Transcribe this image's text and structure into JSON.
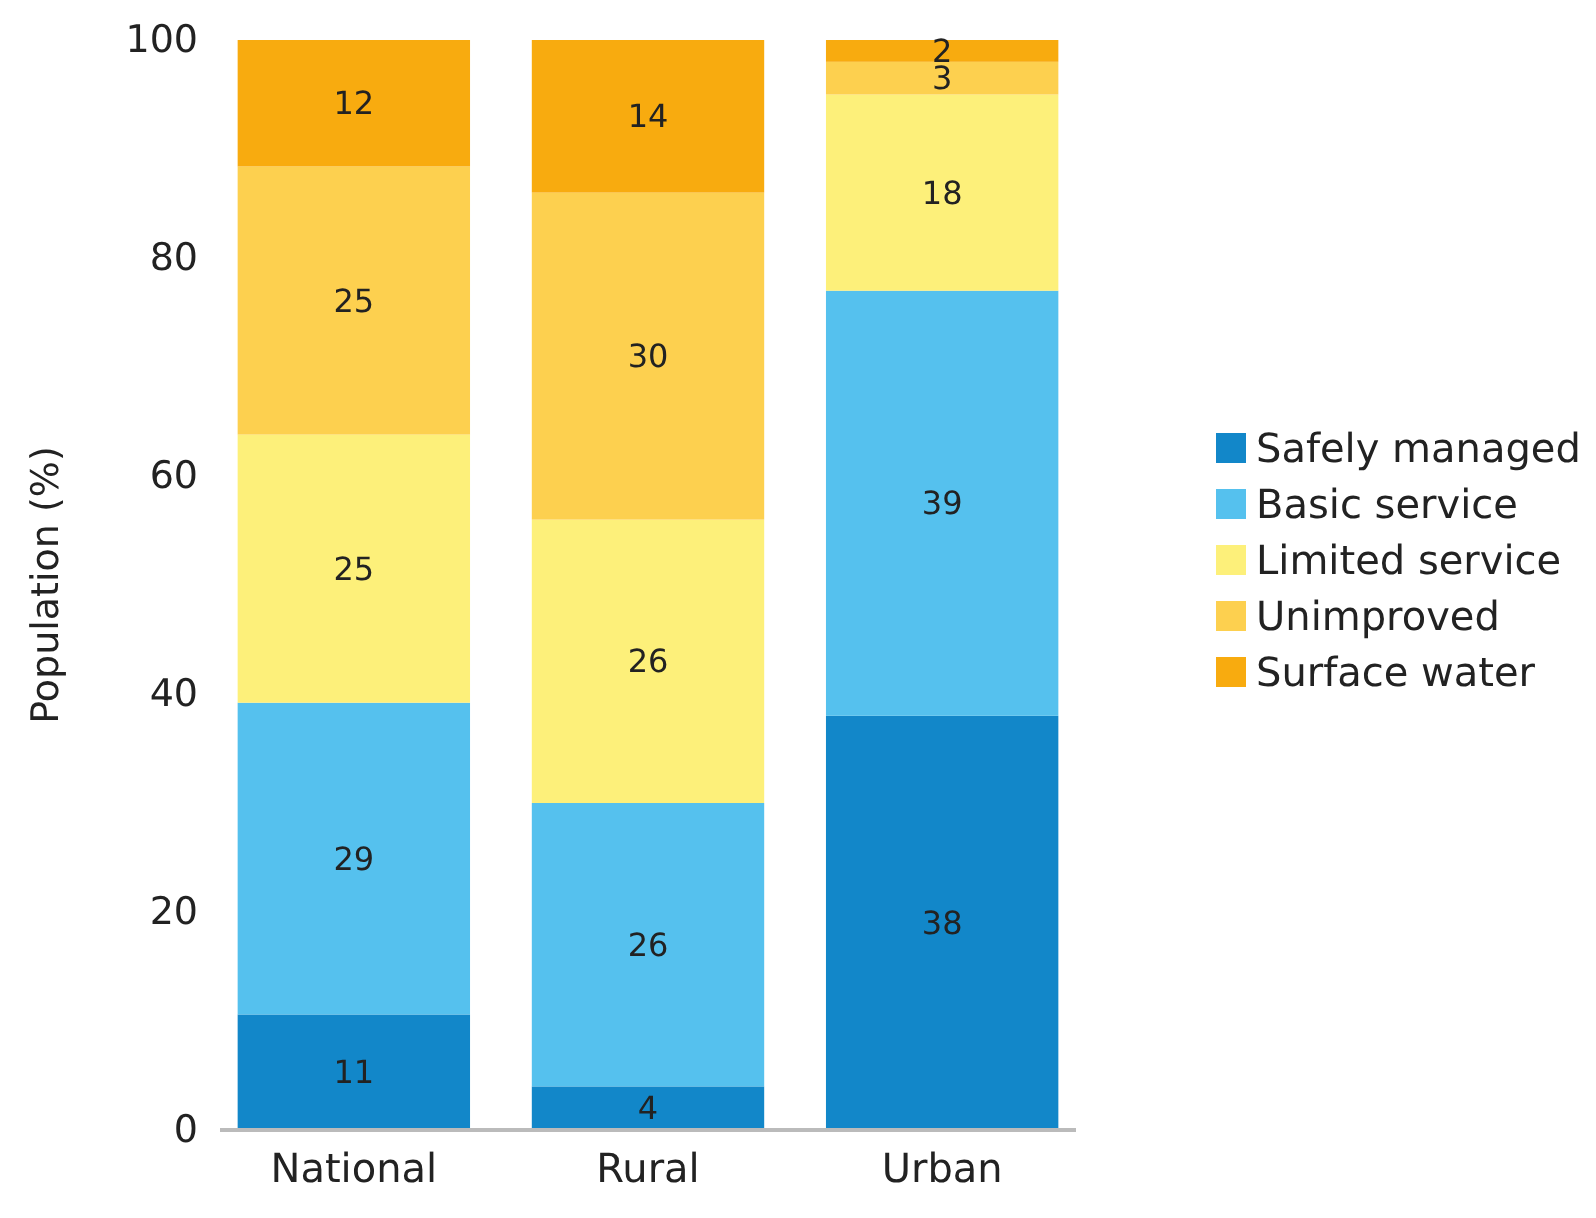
{
  "chart_data": {
    "type": "bar",
    "stacked": true,
    "ylabel": "Population (%)",
    "categories": [
      "National",
      "Rural",
      "Urban"
    ],
    "ylim": [
      0,
      100
    ],
    "yticks": [
      0,
      20,
      40,
      60,
      80,
      100
    ],
    "grid": false,
    "legend": "right",
    "series": [
      {
        "name": "Safely managed",
        "color": "#1287c9",
        "values": [
          10.6,
          4,
          38
        ],
        "value_labels": [
          "11",
          "4",
          "38"
        ]
      },
      {
        "name": "Basic service",
        "color": "#55c1ee",
        "values": [
          28.6,
          26,
          39
        ],
        "value_labels": [
          "29",
          "26",
          "39"
        ]
      },
      {
        "name": "Limited service",
        "color": "#fdf07a",
        "values": [
          24.6,
          26,
          18
        ],
        "value_labels": [
          "25",
          "26",
          "18"
        ]
      },
      {
        "name": "Unimproved",
        "color": "#fdd04f",
        "values": [
          24.6,
          30,
          3
        ],
        "value_labels": [
          "25",
          "30",
          "3"
        ]
      },
      {
        "name": "Surface water",
        "color": "#f8ab0f",
        "values": [
          11.6,
          14,
          2
        ],
        "value_labels": [
          "12",
          "14",
          "2"
        ]
      }
    ]
  }
}
